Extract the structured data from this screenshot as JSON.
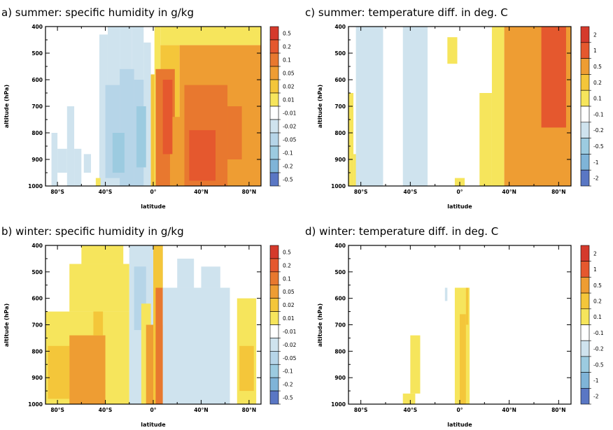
{
  "chart_data": [
    {
      "type": "heatmap",
      "title": "a) summer: specific humidity in g/kg",
      "xlabel": "latitude",
      "ylabel": "altitude (hPa)",
      "x_ticks": [
        "80°S",
        "40°S",
        "0°",
        "40°N",
        "80°N"
      ],
      "y_ticks": [
        "400",
        "500",
        "600",
        "700",
        "800",
        "900",
        "1000"
      ],
      "xlim": [
        -90,
        90
      ],
      "ylim": [
        1000,
        400
      ],
      "colorbar": [
        "0.5",
        "0.2",
        "0.1",
        "0.05",
        "0.02",
        "0.01",
        "-0.01",
        "-0.02",
        "-0.05",
        "-0.1",
        "-0.2",
        "-0.5"
      ],
      "regions": [
        {
          "lat": [
            -85,
            -80
          ],
          "p": [
            800,
            1000
          ],
          "level": -1
        },
        {
          "lat": [
            -80,
            -72
          ],
          "p": [
            860,
            950
          ],
          "level": -1
        },
        {
          "lat": [
            -72,
            -66
          ],
          "p": [
            700,
            1000
          ],
          "level": -1
        },
        {
          "lat": [
            -66,
            -60
          ],
          "p": [
            860,
            1000
          ],
          "level": -1
        },
        {
          "lat": [
            -58,
            -52
          ],
          "p": [
            880,
            950
          ],
          "level": -1
        },
        {
          "lat": [
            -45,
            -38
          ],
          "p": [
            430,
            1000
          ],
          "level": -1
        },
        {
          "lat": [
            -38,
            -28
          ],
          "p": [
            400,
            1000
          ],
          "level": -1
        },
        {
          "lat": [
            -28,
            -18
          ],
          "p": [
            400,
            1000
          ],
          "level": -1
        },
        {
          "lat": [
            -18,
            -8
          ],
          "p": [
            400,
            1000
          ],
          "level": -1
        },
        {
          "lat": [
            -8,
            -2
          ],
          "p": [
            460,
            1000
          ],
          "level": -1
        },
        {
          "lat": [
            -40,
            -28
          ],
          "p": [
            620,
            970
          ],
          "level": -2
        },
        {
          "lat": [
            -28,
            -16
          ],
          "p": [
            560,
            1000
          ],
          "level": -2
        },
        {
          "lat": [
            -16,
            -8
          ],
          "p": [
            600,
            1000
          ],
          "level": -2
        },
        {
          "lat": [
            -34,
            -24
          ],
          "p": [
            800,
            950
          ],
          "level": -3
        },
        {
          "lat": [
            -14,
            -6
          ],
          "p": [
            700,
            930
          ],
          "level": -3
        },
        {
          "lat": [
            -48,
            -44
          ],
          "p": [
            970,
            1000
          ],
          "level": 1
        },
        {
          "lat": [
            -2,
            2
          ],
          "p": [
            580,
            1000
          ],
          "level": 2
        },
        {
          "lat": [
            1,
            6
          ],
          "p": [
            400,
            1000
          ],
          "level": 1
        },
        {
          "lat": [
            6,
            90
          ],
          "p": [
            400,
            470
          ],
          "level": 1
        },
        {
          "lat": [
            6,
            22
          ],
          "p": [
            470,
            1000
          ],
          "level": 2
        },
        {
          "lat": [
            22,
            90
          ],
          "p": [
            470,
            1000
          ],
          "level": 3
        },
        {
          "lat": [
            2,
            18
          ],
          "p": [
            560,
            1000
          ],
          "level": 4
        },
        {
          "lat": [
            14,
            26
          ],
          "p": [
            740,
            1000
          ],
          "level": 3
        },
        {
          "lat": [
            26,
            62
          ],
          "p": [
            620,
            1000
          ],
          "level": 4
        },
        {
          "lat": [
            30,
            52
          ],
          "p": [
            790,
            980
          ],
          "level": 5
        },
        {
          "lat": [
            62,
            74
          ],
          "p": [
            700,
            900
          ],
          "level": 4
        },
        {
          "lat": [
            8,
            16
          ],
          "p": [
            600,
            880
          ],
          "level": 5
        }
      ]
    },
    {
      "type": "heatmap",
      "title": "c) summer: temperature diff. in deg. C",
      "xlabel": "latitude",
      "ylabel": "altitude (hPa)",
      "x_ticks": [
        "80°S",
        "40°S",
        "0°",
        "40°N",
        "80°N"
      ],
      "y_ticks": [
        "400",
        "500",
        "600",
        "700",
        "800",
        "900",
        "1000"
      ],
      "xlim": [
        -90,
        90
      ],
      "ylim": [
        1000,
        400
      ],
      "colorbar": [
        "2",
        "1",
        "0.5",
        "0.2",
        "0.1",
        "-0.1",
        "-0.2",
        "-0.5",
        "-1",
        "-2"
      ],
      "regions": [
        {
          "lat": [
            -90,
            -86
          ],
          "p": [
            650,
            1000
          ],
          "level": 1
        },
        {
          "lat": [
            -86,
            -82
          ],
          "p": [
            880,
            1000
          ],
          "level": 1
        },
        {
          "lat": [
            -84,
            -62
          ],
          "p": [
            400,
            1000
          ],
          "level": -1
        },
        {
          "lat": [
            -46,
            -26
          ],
          "p": [
            400,
            1000
          ],
          "level": -1
        },
        {
          "lat": [
            -10,
            -2
          ],
          "p": [
            440,
            540
          ],
          "level": 1
        },
        {
          "lat": [
            -4,
            4
          ],
          "p": [
            970,
            1000
          ],
          "level": 1
        },
        {
          "lat": [
            16,
            26
          ],
          "p": [
            650,
            1000
          ],
          "level": 1
        },
        {
          "lat": [
            26,
            36
          ],
          "p": [
            400,
            1000
          ],
          "level": 1
        },
        {
          "lat": [
            36,
            90
          ],
          "p": [
            400,
            1000
          ],
          "level": 3
        },
        {
          "lat": [
            66,
            86
          ],
          "p": [
            400,
            780
          ],
          "level": 4
        }
      ]
    },
    {
      "type": "heatmap",
      "title": "b) winter: specific humidity in g/kg",
      "xlabel": "latitude",
      "ylabel": "altitude (hPa)",
      "x_ticks": [
        "80°S",
        "40°S",
        "0°",
        "40°N",
        "80°N"
      ],
      "y_ticks": [
        "400",
        "500",
        "600",
        "700",
        "800",
        "900",
        "1000"
      ],
      "xlim": [
        -90,
        90
      ],
      "ylim": [
        1000,
        400
      ],
      "colorbar": [
        "0.5",
        "0.2",
        "0.1",
        "0.05",
        "0.02",
        "0.01",
        "-0.01",
        "-0.02",
        "-0.05",
        "-0.1",
        "-0.2",
        "-0.5"
      ],
      "regions": [
        {
          "lat": [
            -90,
            -20
          ],
          "p": [
            650,
            1000
          ],
          "level": 1
        },
        {
          "lat": [
            -70,
            -20
          ],
          "p": [
            470,
            650
          ],
          "level": 1
        },
        {
          "lat": [
            -60,
            -25
          ],
          "p": [
            400,
            470
          ],
          "level": 1
        },
        {
          "lat": [
            -88,
            -70
          ],
          "p": [
            780,
            980
          ],
          "level": 2
        },
        {
          "lat": [
            -70,
            -40
          ],
          "p": [
            740,
            1000
          ],
          "level": 3
        },
        {
          "lat": [
            -50,
            -42
          ],
          "p": [
            650,
            740
          ],
          "level": 2
        },
        {
          "lat": [
            -20,
            8
          ],
          "p": [
            400,
            1000
          ],
          "level": -1
        },
        {
          "lat": [
            -16,
            -6
          ],
          "p": [
            480,
            720
          ],
          "level": -2
        },
        {
          "lat": [
            -10,
            -2
          ],
          "p": [
            620,
            1000
          ],
          "level": 1
        },
        {
          "lat": [
            -6,
            2
          ],
          "p": [
            700,
            1000
          ],
          "level": 3
        },
        {
          "lat": [
            0,
            8
          ],
          "p": [
            400,
            1000
          ],
          "level": 2
        },
        {
          "lat": [
            2,
            8
          ],
          "p": [
            560,
            1000
          ],
          "level": 4
        },
        {
          "lat": [
            8,
            14
          ],
          "p": [
            700,
            1000
          ],
          "level": 3
        },
        {
          "lat": [
            8,
            64
          ],
          "p": [
            560,
            1000
          ],
          "level": -1
        },
        {
          "lat": [
            20,
            34
          ],
          "p": [
            450,
            560
          ],
          "level": -1
        },
        {
          "lat": [
            40,
            56
          ],
          "p": [
            480,
            560
          ],
          "level": -1
        },
        {
          "lat": [
            70,
            86
          ],
          "p": [
            600,
            1000
          ],
          "level": 1
        },
        {
          "lat": [
            72,
            84
          ],
          "p": [
            780,
            950
          ],
          "level": 2
        }
      ]
    },
    {
      "type": "heatmap",
      "title": "d) winter: temperature diff. in deg. C",
      "xlabel": "latitude",
      "ylabel": "altitude (hPa)",
      "x_ticks": [
        "80°S",
        "40°S",
        "0°",
        "40°N",
        "80°N"
      ],
      "y_ticks": [
        "400",
        "500",
        "600",
        "700",
        "800",
        "900",
        "1000"
      ],
      "xlim": [
        -90,
        90
      ],
      "ylim": [
        1000,
        400
      ],
      "colorbar": [
        "2",
        "1",
        "0.5",
        "0.2",
        "0.1",
        "-0.1",
        "-0.2",
        "-0.5",
        "-1",
        "-2"
      ],
      "regions": [
        {
          "lat": [
            -12,
            -10
          ],
          "p": [
            560,
            610
          ],
          "level": -1
        },
        {
          "lat": [
            -40,
            -32
          ],
          "p": [
            740,
            960
          ],
          "level": 1
        },
        {
          "lat": [
            -46,
            -36
          ],
          "p": [
            960,
            1000
          ],
          "level": 1
        },
        {
          "lat": [
            -4,
            8
          ],
          "p": [
            560,
            1000
          ],
          "level": 1
        },
        {
          "lat": [
            0,
            5
          ],
          "p": [
            660,
            1000
          ],
          "level": 2
        },
        {
          "lat": [
            5,
            7
          ],
          "p": [
            560,
            700
          ],
          "level": 2
        }
      ]
    }
  ]
}
